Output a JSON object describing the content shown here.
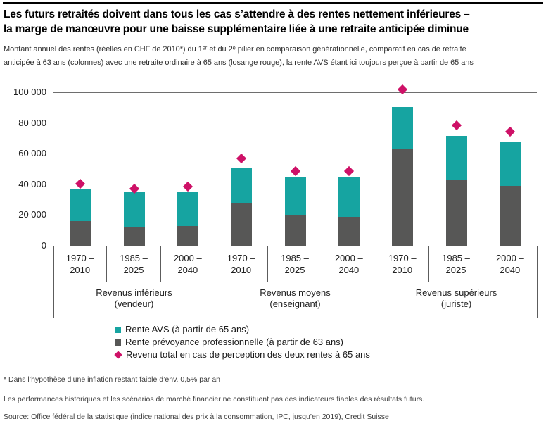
{
  "header": {
    "title_lines": [
      "Les futurs retraités doivent dans tous les cas s’attendre à des rentes nettement inférieures –",
      "la marge de manœuvre pour une baisse supplémentaire liée à une retraite anticipée diminue"
    ],
    "subtitle_lines": [
      "Montant annuel des rentes (réelles en CHF de 2010*) du 1ᵉʳ et du 2ᵉ pilier en comparaison générationnelle, comparatif en cas de retraite",
      "anticipée à 63 ans (colonnes) avec une retraite ordinaire à 65 ans (losange rouge), la rente AVS étant ici toujours perçue à partir de 65 ans"
    ]
  },
  "chart_data": {
    "type": "bar",
    "stacked": true,
    "grid": true,
    "ylim": [
      0,
      100000
    ],
    "ytick_values": [
      0,
      20000,
      40000,
      60000,
      80000,
      100000
    ],
    "ytick_labels": [
      "0",
      "20 000",
      "40 000",
      "60 000",
      "80 000",
      "100 000"
    ],
    "series": [
      {
        "name": "Rente AVS (à partir de 65 ans)",
        "key": "avs_65",
        "color": "#16A4A1",
        "marker": "square"
      },
      {
        "name": "Rente prévoyance professionnelle (à partir de 63 ans)",
        "key": "bvg_63",
        "color": "#575756",
        "marker": "square"
      },
      {
        "name": "Revenu total en cas de perception des deux rentes à 65 ans",
        "key": "total_65",
        "color": "#CE1167",
        "marker": "diamond"
      }
    ],
    "groups": [
      {
        "label": "Revenus inférieurs",
        "sublabel": "(vendeur)",
        "bars": [
          {
            "period": [
              "1970 –",
              "2010"
            ],
            "bvg_63": 16000,
            "avs_65": 21000,
            "total_65": 40500
          },
          {
            "period": [
              "1985 –",
              "2025"
            ],
            "bvg_63": 12500,
            "avs_65": 22500,
            "total_65": 37000
          },
          {
            "period": [
              "2000 –",
              "2040"
            ],
            "bvg_63": 13000,
            "avs_65": 22500,
            "total_65": 38500
          }
        ]
      },
      {
        "label": "Revenus moyens",
        "sublabel": "(enseignant)",
        "bars": [
          {
            "period": [
              "1970 –",
              "2010"
            ],
            "bvg_63": 28000,
            "avs_65": 22500,
            "total_65": 57000
          },
          {
            "period": [
              "1985 –",
              "2025"
            ],
            "bvg_63": 20000,
            "avs_65": 25000,
            "total_65": 48500
          },
          {
            "period": [
              "2000 –",
              "2040"
            ],
            "bvg_63": 19000,
            "avs_65": 25500,
            "total_65": 48500
          }
        ]
      },
      {
        "label": "Revenus supérieurs",
        "sublabel": "(juriste)",
        "bars": [
          {
            "period": [
              "1970 –",
              "2010"
            ],
            "bvg_63": 63000,
            "avs_65": 27500,
            "total_65": 102000
          },
          {
            "period": [
              "1985 –",
              "2025"
            ],
            "bvg_63": 43000,
            "avs_65": 28500,
            "total_65": 78500
          },
          {
            "period": [
              "2000 –",
              "2040"
            ],
            "bvg_63": 39000,
            "avs_65": 29000,
            "total_65": 74500
          }
        ]
      }
    ]
  },
  "footnotes": [
    "* Dans l’hypothèse d’une inflation restant faible d’env. 0,5% par an",
    "Les performances historiques et les scénarios de marché financier ne constituent pas des indicateurs fiables des résultats futurs.",
    "Source: Office fédéral de la statistique (indice national des prix à la consommation, IPC, jusqu’en 2019), Credit Suisse"
  ]
}
